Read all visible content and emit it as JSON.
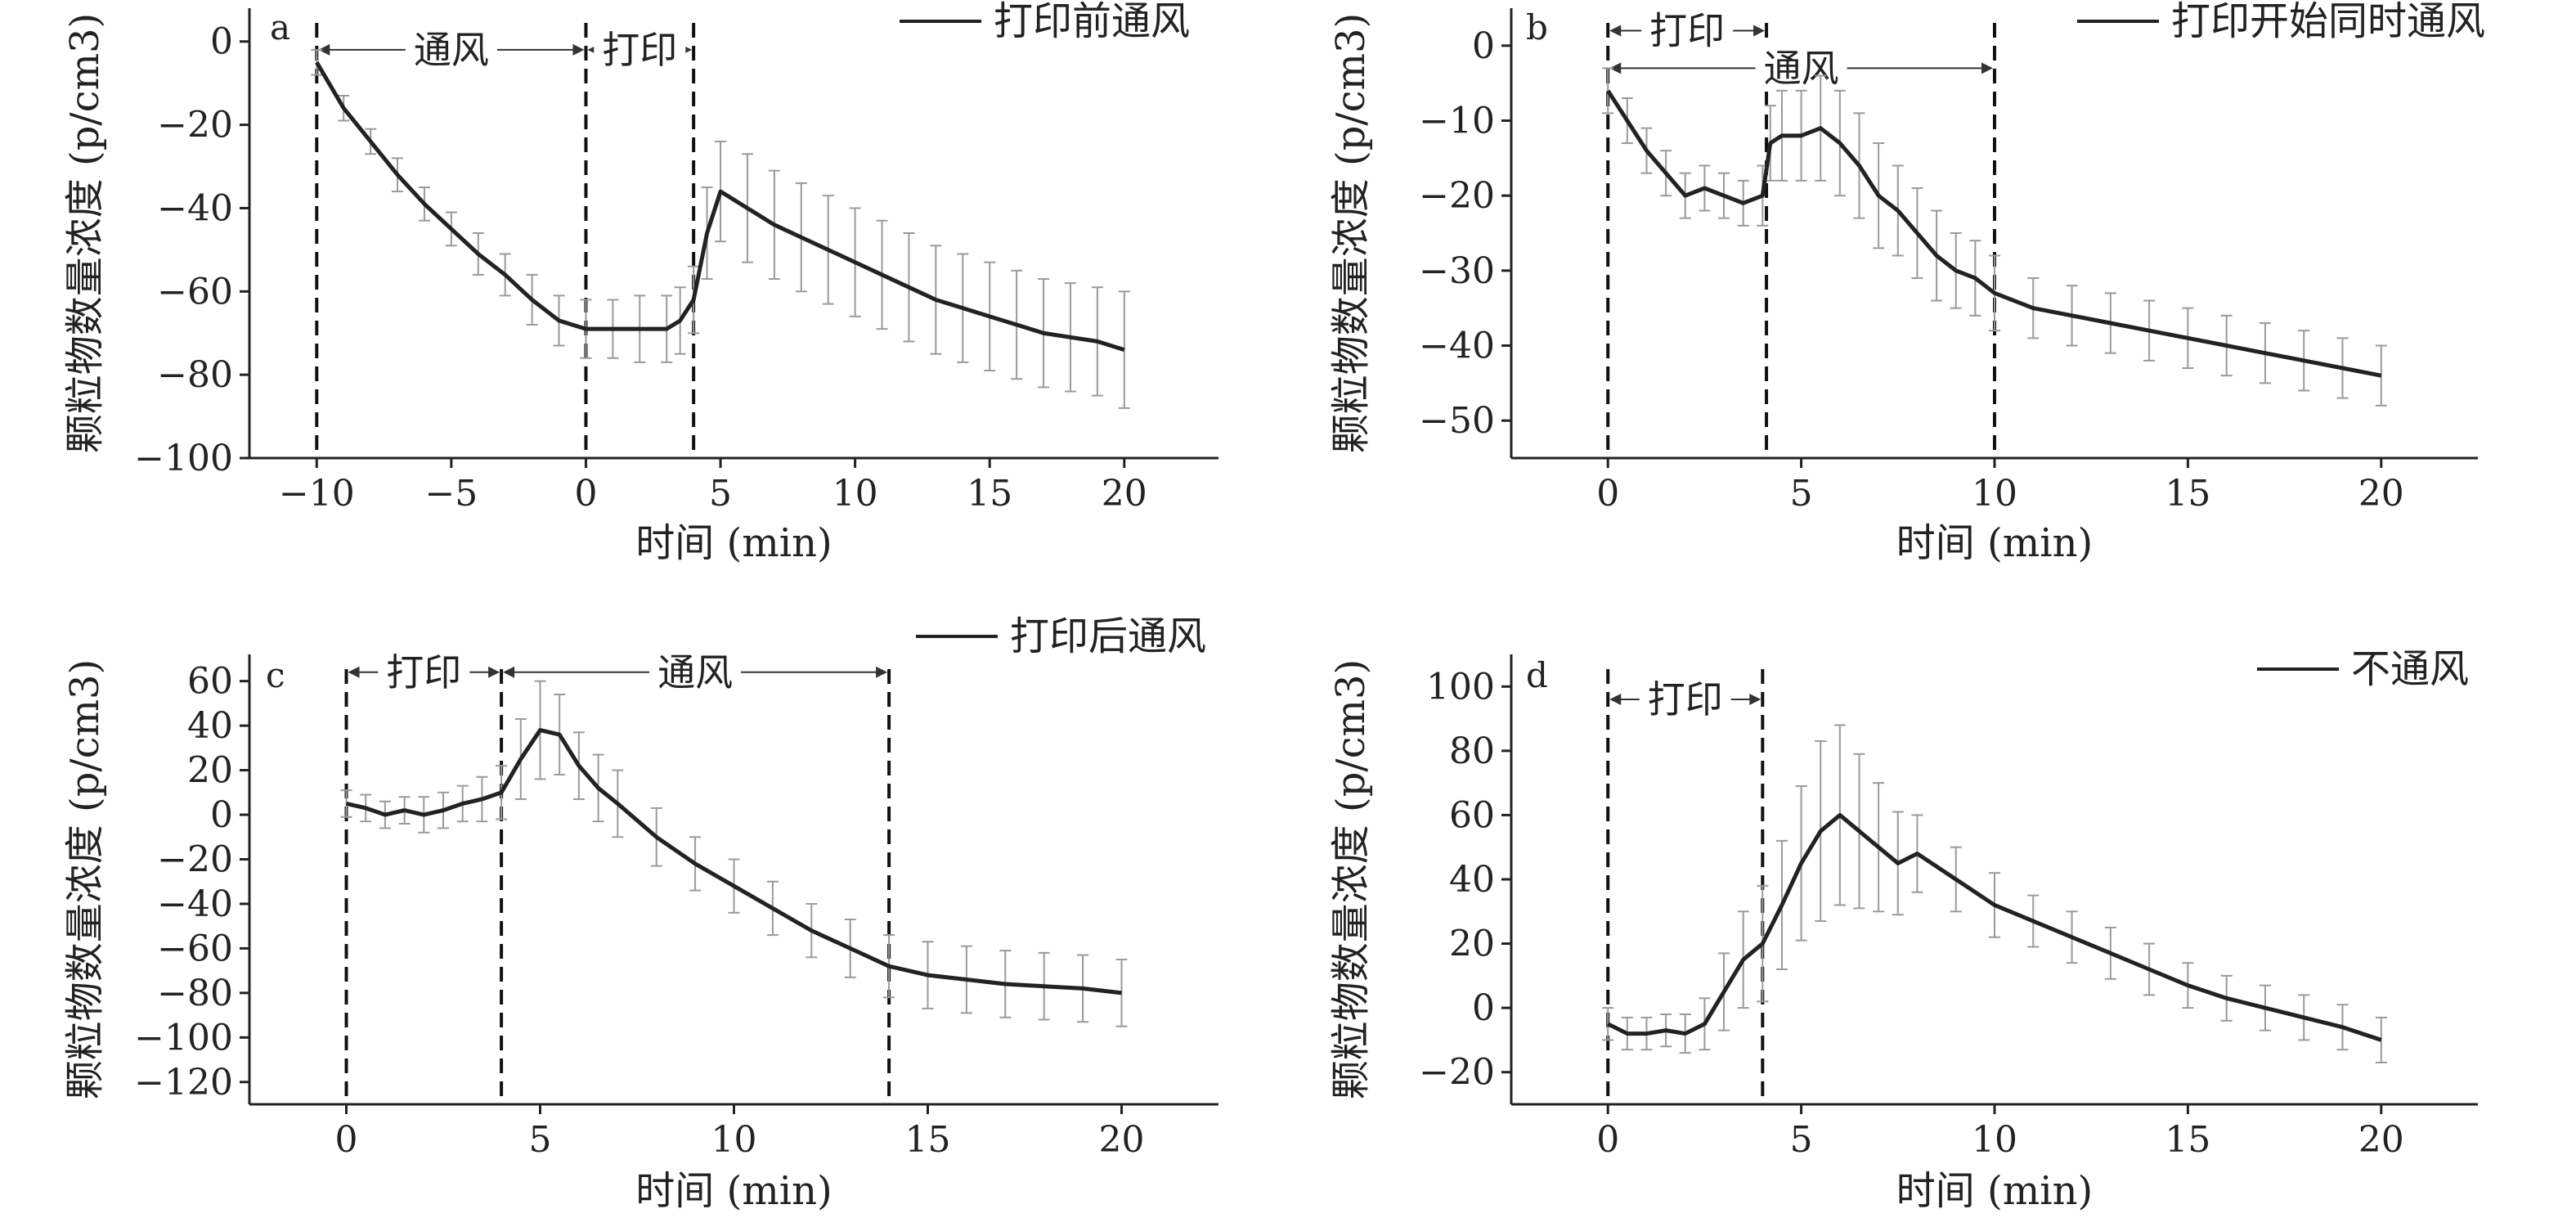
{
  "chart_data": [
    {
      "type": "line",
      "panel": "a",
      "legend": "打印前通风",
      "xlabel": "时间 (min)",
      "ylabel": "颗粒物数量浓度 (p/cm3)",
      "xlim": [
        -12.5,
        23.5
      ],
      "ylim": [
        -100,
        8
      ],
      "xticks": [
        -10,
        -5,
        0,
        5,
        10,
        15,
        20
      ],
      "yticks": [
        0,
        -20,
        -40,
        -60,
        -80,
        -100
      ],
      "x": [
        -10,
        -9,
        -8,
        -7,
        -6,
        -5,
        -4,
        -3,
        -2,
        -1,
        0,
        1,
        2,
        3,
        3.5,
        4,
        4.5,
        5,
        6,
        7,
        8,
        9,
        10,
        11,
        12,
        13,
        14,
        15,
        16,
        17,
        18,
        19,
        20
      ],
      "y": [
        -5,
        -16,
        -24,
        -32,
        -39,
        -45,
        -51,
        -56,
        -62,
        -67,
        -69,
        -69,
        -69,
        -69,
        -67,
        -62,
        -46,
        -36,
        -40,
        -44,
        -47,
        -50,
        -53,
        -56,
        -59,
        -62,
        -64,
        -66,
        -68,
        -70,
        -71,
        -72,
        -74
      ],
      "err": [
        3,
        3,
        3,
        4,
        4,
        4,
        5,
        5,
        6,
        6,
        7,
        7,
        8,
        8,
        8,
        8,
        11,
        12,
        13,
        13,
        13,
        13,
        13,
        13,
        13,
        13,
        13,
        13,
        13,
        13,
        13,
        13,
        14
      ],
      "vlines": [
        -10,
        0,
        4
      ],
      "annotations": [
        {
          "text": "通风",
          "from": -10,
          "to": 0,
          "y": -2
        },
        {
          "text": "打印",
          "from": 0,
          "to": 4,
          "y": -2
        }
      ]
    },
    {
      "type": "line",
      "panel": "b",
      "legend": "打印开始同时通风",
      "xlabel": "时间 (min)",
      "ylabel": "颗粒物数量浓度 (p/cm3)",
      "xlim": [
        -2.5,
        22.5
      ],
      "ylim": [
        -55,
        5
      ],
      "xticks": [
        0,
        5,
        10,
        15,
        20
      ],
      "yticks": [
        0,
        -10,
        -20,
        -30,
        -40,
        -50
      ],
      "x": [
        0,
        0.5,
        1,
        1.5,
        2,
        2.5,
        3,
        3.5,
        4,
        4.2,
        4.5,
        5,
        5.5,
        6,
        6.5,
        7,
        7.5,
        8,
        8.5,
        9,
        9.5,
        10,
        11,
        12,
        13,
        14,
        15,
        16,
        17,
        18,
        19,
        20
      ],
      "y": [
        -6,
        -10,
        -14,
        -17,
        -20,
        -19,
        -20,
        -21,
        -20,
        -13,
        -12,
        -12,
        -11,
        -13,
        -16,
        -20,
        -22,
        -25,
        -28,
        -30,
        -31,
        -33,
        -35,
        -36,
        -37,
        -38,
        -39,
        -40,
        -41,
        -42,
        -43,
        -44
      ],
      "err": [
        3,
        3,
        3,
        3,
        3,
        3,
        3,
        3,
        4,
        5,
        6,
        6,
        7,
        7,
        7,
        7,
        6,
        6,
        6,
        5,
        5,
        5,
        4,
        4,
        4,
        4,
        4,
        4,
        4,
        4,
        4,
        4
      ],
      "vlines": [
        0,
        4.1,
        10
      ],
      "annotations": [
        {
          "text": "打印",
          "from": 0,
          "to": 4.1,
          "y": 2
        },
        {
          "text": "通风",
          "from": 0,
          "to": 10,
          "y": -3
        }
      ]
    },
    {
      "type": "line",
      "panel": "c",
      "legend": "打印后通风",
      "xlabel": "时间 (min)",
      "ylabel": "颗粒物数量浓度 (p/cm3)",
      "xlim": [
        -2.5,
        22.5
      ],
      "ylim": [
        -130,
        72
      ],
      "xticks": [
        0,
        5,
        10,
        15,
        20
      ],
      "yticks": [
        60,
        40,
        20,
        0,
        -20,
        -40,
        -60,
        -80,
        -100,
        -120
      ],
      "x": [
        0,
        0.5,
        1,
        1.5,
        2,
        2.5,
        3,
        3.5,
        4,
        4.5,
        5,
        5.5,
        6,
        6.5,
        7,
        8,
        9,
        10,
        11,
        12,
        13,
        14,
        15,
        16,
        17,
        18,
        19,
        20
      ],
      "y": [
        5,
        3,
        0,
        2,
        0,
        2,
        5,
        7,
        10,
        25,
        38,
        36,
        22,
        12,
        5,
        -10,
        -22,
        -32,
        -42,
        -52,
        -60,
        -68,
        -72,
        -74,
        -76,
        -77,
        -78,
        -80
      ],
      "err": [
        6,
        6,
        6,
        6,
        8,
        8,
        8,
        10,
        12,
        18,
        22,
        18,
        15,
        15,
        15,
        13,
        12,
        12,
        12,
        12,
        13,
        14,
        15,
        15,
        15,
        15,
        15,
        15
      ],
      "vlines": [
        0,
        4,
        14
      ],
      "annotations": [
        {
          "text": "打印",
          "from": 0,
          "to": 4,
          "y": 64
        },
        {
          "text": "通风",
          "from": 4,
          "to": 14,
          "y": 64
        }
      ]
    },
    {
      "type": "line",
      "panel": "d",
      "legend": "不通风",
      "xlabel": "时间 (min)",
      "ylabel": "颗粒物数量浓度 (p/cm3)",
      "xlim": [
        -2.5,
        22.5
      ],
      "ylim": [
        -30,
        110
      ],
      "xticks": [
        0,
        5,
        10,
        15,
        20
      ],
      "yticks": [
        100,
        80,
        60,
        40,
        20,
        0,
        -20
      ],
      "x": [
        0,
        0.5,
        1,
        1.5,
        2,
        2.5,
        3,
        3.5,
        4,
        4.5,
        5,
        5.5,
        6,
        6.5,
        7,
        7.5,
        8,
        9,
        10,
        11,
        12,
        13,
        14,
        15,
        16,
        17,
        18,
        19,
        20
      ],
      "y": [
        -5,
        -8,
        -8,
        -7,
        -8,
        -5,
        5,
        15,
        20,
        32,
        45,
        55,
        60,
        55,
        50,
        45,
        48,
        40,
        32,
        27,
        22,
        17,
        12,
        7,
        3,
        0,
        -3,
        -6,
        -10
      ],
      "err": [
        5,
        5,
        5,
        5,
        6,
        8,
        12,
        15,
        18,
        20,
        24,
        28,
        28,
        24,
        20,
        16,
        12,
        10,
        10,
        8,
        8,
        8,
        8,
        7,
        7,
        7,
        7,
        7,
        7
      ],
      "vlines": [
        0,
        4
      ],
      "annotations": [
        {
          "text": "打印",
          "from": 0,
          "to": 4,
          "y": 96
        }
      ]
    }
  ]
}
